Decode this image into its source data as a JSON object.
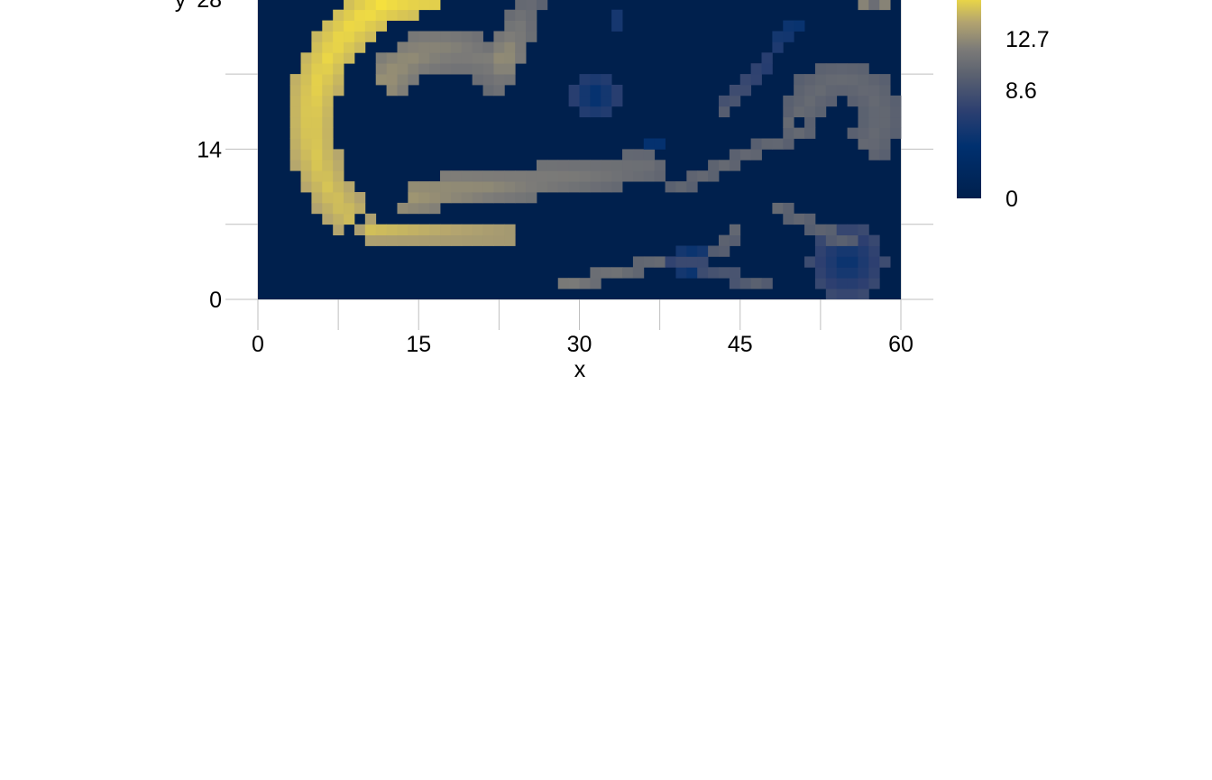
{
  "chart_data": {
    "type": "heatmap",
    "title": "",
    "xlabel": "x",
    "ylabel": "y",
    "xlim": [
      0,
      60
    ],
    "ylim": [
      0,
      28
    ],
    "x_ticks": [
      "0",
      "15",
      "30",
      "45",
      "60"
    ],
    "y_ticks": [
      "0",
      "14",
      "28"
    ],
    "colorbar": {
      "colorscale": "cividis",
      "zlim": [
        0,
        16.5
      ],
      "ticks": [
        "0",
        "8.6",
        "12.7"
      ]
    },
    "grid": true,
    "cell_size": 1,
    "background_value": 0,
    "colors": {
      "low": "#00204d",
      "mid_low": "#2c3f70",
      "mid": "#7c7b78",
      "high": "#fee838"
    },
    "features": [
      {
        "kind": "arc",
        "cx": 17.5,
        "cy": 16.5,
        "r": 12.5,
        "a0": 95,
        "a1": 225,
        "width": 4.2,
        "v0": 16.5,
        "v1": 15.0
      },
      {
        "kind": "arc",
        "cx": 17.5,
        "cy": 16.5,
        "r": 6.8,
        "a0": 30,
        "a1": 150,
        "width": 3.6,
        "v0": 11.5,
        "v1": 13.2
      },
      {
        "kind": "line",
        "x0": 10.5,
        "y0": 6.5,
        "x1": 23.5,
        "y1": 6.0,
        "width": 2.0,
        "v0": 15.0,
        "v1": 14.0
      },
      {
        "kind": "line",
        "x0": 13.0,
        "y0": 9.5,
        "x1": 36.5,
        "y1": 12.3,
        "width": 3.0,
        "v0": 13.5,
        "v1": 11.0
      },
      {
        "kind": "line",
        "x0": 23.0,
        "y0": 22.5,
        "x1": 25.5,
        "y1": 28.0,
        "width": 3.0,
        "v0": 13.0,
        "v1": 10.5
      },
      {
        "kind": "blob",
        "cx": 31.5,
        "cy": 19.0,
        "r": 2.3,
        "v": 7.0
      },
      {
        "kind": "line",
        "x0": 43.5,
        "y0": 17.5,
        "x1": 50.0,
        "y1": 25.5,
        "width": 1.3,
        "v0": 9.5,
        "v1": 5.0
      },
      {
        "kind": "line",
        "x0": 39.0,
        "y0": 10.5,
        "x1": 51.5,
        "y1": 16.0,
        "width": 1.3,
        "v0": 10.5,
        "v1": 10.5
      },
      {
        "kind": "line",
        "x0": 49.0,
        "y0": 16.0,
        "x1": 52.5,
        "y1": 19.5,
        "width": 1.3,
        "v0": 10.5,
        "v1": 10.5
      },
      {
        "kind": "arc",
        "cx": 54.5,
        "cy": 17.0,
        "r": 3.5,
        "a0": -60,
        "a1": 180,
        "width": 3.8,
        "v0": 10.5,
        "v1": 10.5
      },
      {
        "kind": "line",
        "x0": 45.0,
        "y0": 7.0,
        "x1": 43.0,
        "y1": 4.5,
        "width": 1.3,
        "v0": 10.5,
        "v1": 10.0
      },
      {
        "kind": "line",
        "x0": 48.5,
        "y0": 8.5,
        "x1": 55.0,
        "y1": 5.5,
        "width": 1.3,
        "v0": 10.5,
        "v1": 10.0
      },
      {
        "kind": "line",
        "x0": 28.5,
        "y0": 1.3,
        "x1": 37.5,
        "y1": 3.5,
        "width": 1.3,
        "v0": 12.0,
        "v1": 10.5
      },
      {
        "kind": "line",
        "x0": 38.5,
        "y0": 3.8,
        "x1": 47.0,
        "y1": 1.3,
        "width": 1.3,
        "v0": 7.5,
        "v1": 10.0
      },
      {
        "kind": "blob",
        "cx": 40.5,
        "cy": 3.5,
        "r": 1.8,
        "v": 6.0
      },
      {
        "kind": "blob",
        "cx": 55.0,
        "cy": 3.5,
        "r": 3.5,
        "v": 8.0
      },
      {
        "kind": "blob",
        "cx": 57.5,
        "cy": 28.5,
        "r": 1.6,
        "v": 13.0
      },
      {
        "kind": "blob",
        "cx": 31.0,
        "cy": 27.0,
        "r": 0.5,
        "v": 5.5
      },
      {
        "kind": "blob",
        "cx": 33.5,
        "cy": 26.0,
        "r": 0.5,
        "v": 5.5
      },
      {
        "kind": "blob",
        "cx": 37.0,
        "cy": 14.5,
        "r": 0.7,
        "v": 5.0
      }
    ],
    "holes": [
      {
        "kind": "arc",
        "cx": 17.5,
        "cy": 16.5,
        "r": 9.7,
        "a0": 100,
        "a1": 220,
        "width": 1.1
      },
      {
        "kind": "blob",
        "cx": 12.0,
        "cy": 10.5,
        "r": 2.3
      },
      {
        "kind": "blob",
        "cx": 17.5,
        "cy": 16.5,
        "r": 2.5
      }
    ]
  }
}
